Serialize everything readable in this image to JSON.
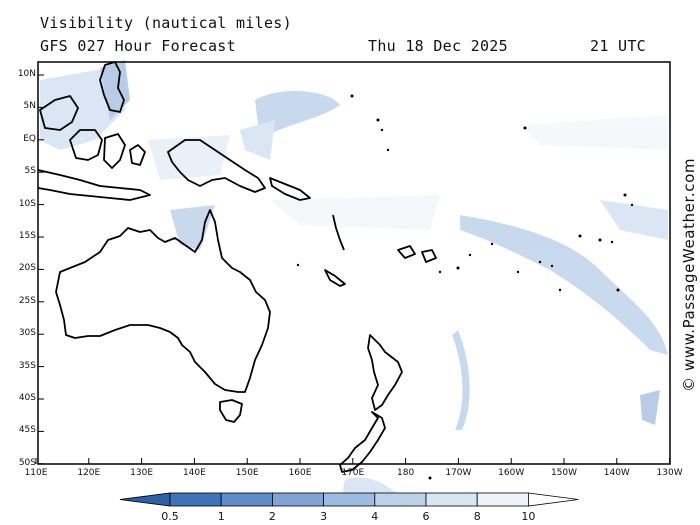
{
  "header": {
    "title": "Visibility (nautical miles)",
    "subtitle": "GFS 027 Hour Forecast",
    "date": "Thu 18 Dec 2025",
    "time": "21 UTC"
  },
  "credit": "© www.PassageWeather.com",
  "map": {
    "region": "Australia, New Zealand and South-West Pacific",
    "lat_labels": [
      "10N",
      "5N",
      "EQ",
      "5S",
      "10S",
      "15S",
      "20S",
      "25S",
      "30S",
      "35S",
      "40S",
      "45S",
      "50S"
    ],
    "lon_labels": [
      "110E",
      "120E",
      "130E",
      "140E",
      "150E",
      "160E",
      "170E",
      "180",
      "170W",
      "160W",
      "150W",
      "140W",
      "130W"
    ]
  },
  "legend": {
    "labels": [
      "0.5",
      "1",
      "2",
      "3",
      "4",
      "6",
      "8",
      "10"
    ],
    "colors": [
      "#3f73b8",
      "#5e8cc8",
      "#7fa3d4",
      "#9dbbe0",
      "#bcd2ea",
      "#d8e5f2",
      "#eef3f9",
      "#ffffff"
    ]
  }
}
